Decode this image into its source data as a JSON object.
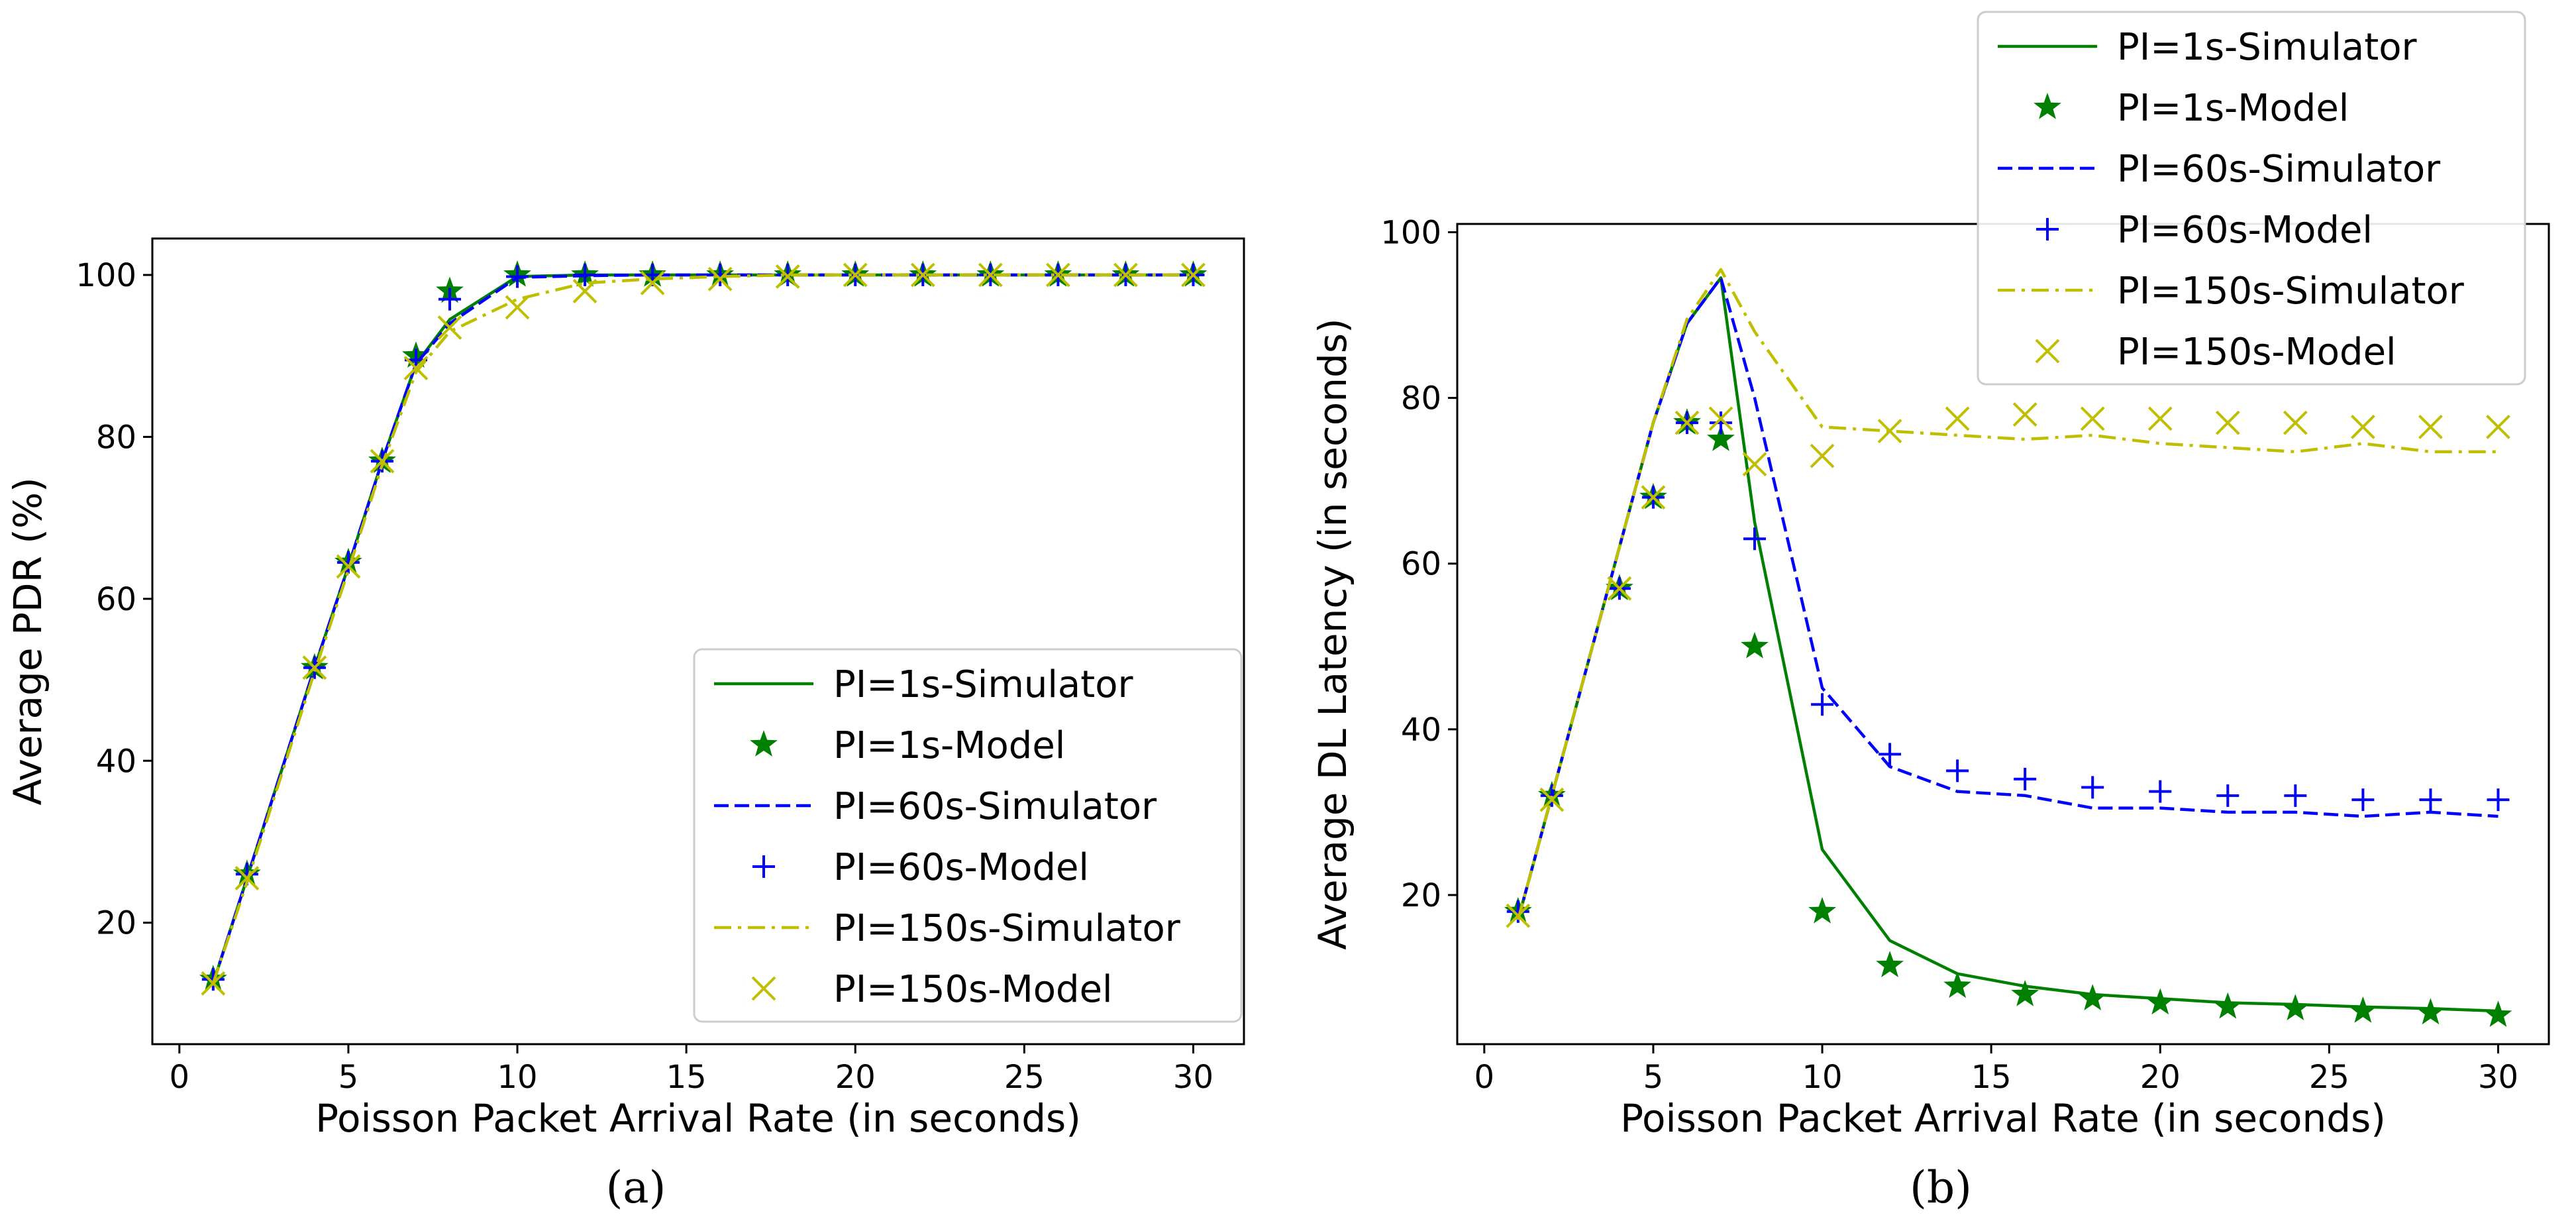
{
  "chart_data": [
    {
      "type": "line",
      "panel": "a",
      "caption": "(a)",
      "xlabel": "Poisson Packet Arrival Rate (in seconds)",
      "ylabel": "Average PDR (%)",
      "xlim": [
        -0.8,
        31.5
      ],
      "ylim": [
        5,
        104.5
      ],
      "xticks": [
        0,
        5,
        10,
        15,
        20,
        25,
        30
      ],
      "yticks": [
        20,
        40,
        60,
        80,
        100
      ],
      "legend_position": "lower-right",
      "x": [
        1,
        2,
        4,
        5,
        6,
        7,
        8,
        10,
        12,
        14,
        16,
        18,
        20,
        22,
        24,
        26,
        28,
        30
      ],
      "series": [
        {
          "name": "PI=1s-Simulator",
          "style": "solid",
          "color": "#008000",
          "values": [
            12.5,
            25.5,
            51.5,
            64,
            77,
            89,
            94.5,
            99.8,
            100,
            100,
            100,
            100,
            100,
            100,
            100,
            100,
            100,
            100
          ]
        },
        {
          "name": "PI=1s-Model",
          "style": "star",
          "color": "#008000",
          "values": [
            13,
            26,
            51.5,
            64.5,
            77,
            90,
            98,
            100,
            100,
            100,
            100,
            100,
            100,
            100,
            100,
            100,
            100,
            100
          ]
        },
        {
          "name": "PI=60s-Simulator",
          "style": "dashed",
          "color": "#0000ff",
          "values": [
            12.5,
            25.5,
            51.5,
            64,
            77,
            89,
            94,
            99.7,
            99.9,
            100,
            100,
            100,
            100,
            100,
            100,
            100,
            100,
            100
          ]
        },
        {
          "name": "PI=60s-Model",
          "style": "plus",
          "color": "#0000ff",
          "values": [
            13,
            26,
            51.5,
            64.5,
            77,
            89.5,
            97,
            99.8,
            100,
            100,
            100,
            100,
            100,
            100,
            100,
            100,
            100,
            100
          ]
        },
        {
          "name": "PI=150s-Simulator",
          "style": "dashdot",
          "color": "#bfbf00",
          "values": [
            12.5,
            25,
            51,
            63.5,
            76.5,
            88,
            93,
            97,
            99,
            99.5,
            99.8,
            100,
            100,
            100,
            100,
            100,
            100,
            100
          ]
        },
        {
          "name": "PI=150s-Model",
          "style": "x",
          "color": "#bfbf00",
          "values": [
            12.5,
            25.5,
            51.5,
            64,
            77,
            88.5,
            93.5,
            96,
            98,
            99,
            99.5,
            99.8,
            100,
            100,
            100,
            100,
            100,
            100
          ]
        }
      ]
    },
    {
      "type": "line",
      "panel": "b",
      "caption": "(b)",
      "xlabel": "Poisson Packet Arrival Rate (in seconds)",
      "ylabel": "Average DL Latency (in seconds)",
      "xlim": [
        -0.8,
        31.5
      ],
      "ylim": [
        2,
        101
      ],
      "xticks": [
        0,
        5,
        10,
        15,
        20,
        25,
        30
      ],
      "yticks": [
        20,
        40,
        60,
        80,
        100
      ],
      "legend_position": "upper-right",
      "x": [
        1,
        2,
        4,
        5,
        6,
        7,
        8,
        10,
        12,
        14,
        16,
        18,
        20,
        22,
        24,
        26,
        28,
        30
      ],
      "series": [
        {
          "name": "PI=1s-Simulator",
          "style": "solid",
          "color": "#008000",
          "values": [
            17,
            32,
            62,
            77,
            89,
            94.5,
            65,
            25.5,
            14.5,
            10.5,
            9,
            8,
            7.5,
            7,
            6.8,
            6.5,
            6.3,
            6
          ]
        },
        {
          "name": "PI=1s-Model",
          "style": "star",
          "color": "#008000",
          "values": [
            18,
            32,
            57,
            68,
            77,
            75,
            50,
            18,
            11.5,
            9,
            8,
            7.5,
            7,
            6.5,
            6.3,
            6,
            5.8,
            5.5
          ]
        },
        {
          "name": "PI=60s-Simulator",
          "style": "dashed",
          "color": "#0000ff",
          "values": [
            17,
            32,
            62,
            77,
            89,
            94.5,
            80,
            45,
            35.5,
            32.5,
            32,
            30.5,
            30.5,
            30,
            30,
            29.5,
            30,
            29.5
          ]
        },
        {
          "name": "PI=60s-Model",
          "style": "plus",
          "color": "#0000ff",
          "values": [
            18,
            32,
            57,
            68,
            77,
            77,
            63,
            43,
            37,
            35,
            34,
            33,
            32.5,
            32,
            32,
            31.5,
            31.5,
            31.5
          ]
        },
        {
          "name": "PI=150s-Simulator",
          "style": "dashdot",
          "color": "#bfbf00",
          "values": [
            17,
            32,
            62,
            77,
            89.5,
            95.5,
            88,
            76.5,
            76,
            75.5,
            75,
            75.5,
            74.5,
            74,
            73.5,
            74.5,
            73.5,
            73.5
          ]
        },
        {
          "name": "PI=150s-Model",
          "style": "x",
          "color": "#bfbf00",
          "values": [
            17.5,
            31.5,
            57,
            68,
            77,
            77.5,
            72,
            73,
            76,
            77.5,
            78,
            77.5,
            77.5,
            77,
            77,
            76.5,
            76.5,
            76.5
          ]
        }
      ]
    }
  ]
}
